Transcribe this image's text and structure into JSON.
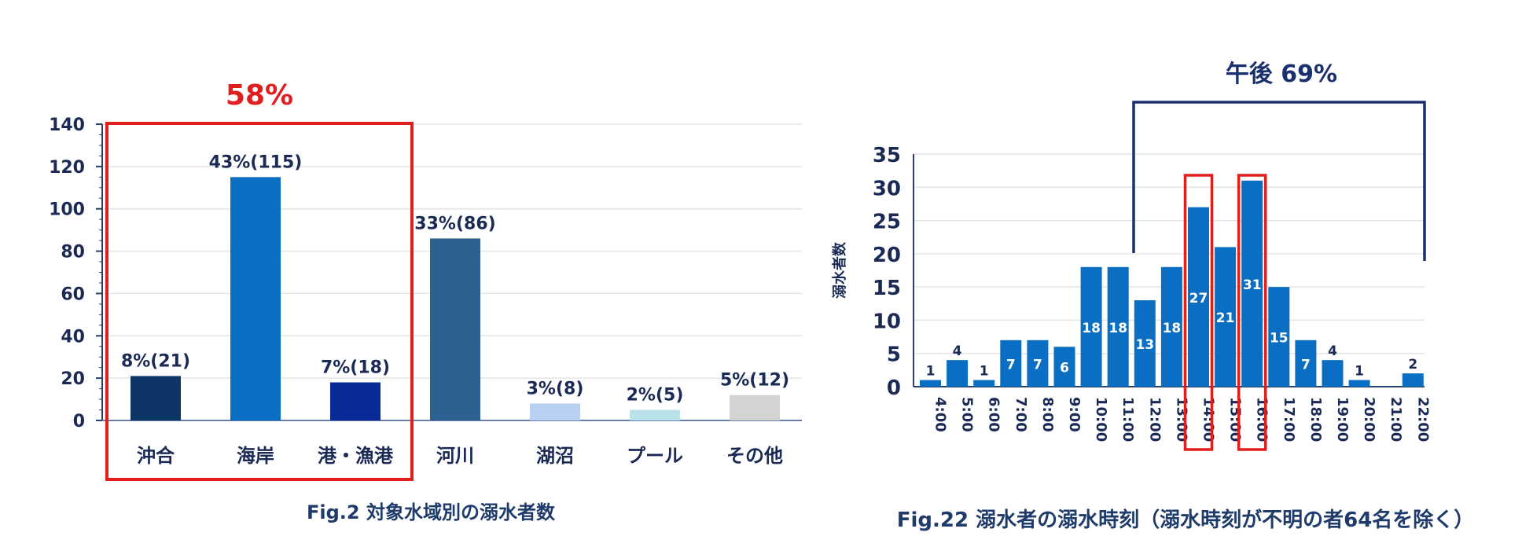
{
  "chart_data": [
    {
      "type": "bar",
      "title": "",
      "caption": "Fig.2 対象水域別の溺水者数",
      "categories": [
        "沖合",
        "海岸",
        "港・漁港",
        "河川",
        "湖沼",
        "プール",
        "その他"
      ],
      "values": [
        21,
        115,
        18,
        86,
        8,
        5,
        12
      ],
      "data_labels": [
        "8%(21)",
        "43%(115)",
        "7%(18)",
        "33%(86)",
        "3%(8)",
        "2%(5)",
        "5%(12)"
      ],
      "colors": [
        "#0d3566",
        "#0a6fc2",
        "#0a2a96",
        "#2c6190",
        "#b8d1f3",
        "#b9e3ea",
        "#d3d3d3"
      ],
      "ylim": [
        0,
        140
      ],
      "yticks": [
        0,
        20,
        40,
        60,
        80,
        100,
        120,
        140
      ],
      "grid": true,
      "xlabel": "",
      "ylabel": "",
      "highlight": {
        "label": "58%",
        "categories": [
          "沖合",
          "海岸",
          "港・漁港"
        ],
        "color": "#e01e1e"
      }
    },
    {
      "type": "bar",
      "title": "",
      "caption": "Fig.22 溺水者の溺水時刻（溺水時刻が不明の者64名を除く）",
      "categories": [
        "4:00",
        "5:00",
        "6:00",
        "7:00",
        "8:00",
        "9:00",
        "10:00",
        "11:00",
        "12:00",
        "13:00",
        "14:00",
        "15:00",
        "16:00",
        "17:00",
        "18:00",
        "19:00",
        "20:00",
        "21:00",
        "22:00"
      ],
      "values": [
        1,
        4,
        1,
        7,
        7,
        6,
        18,
        18,
        13,
        18,
        27,
        21,
        31,
        15,
        7,
        4,
        1,
        0,
        2
      ],
      "data_labels": [
        "1",
        "4",
        "1",
        "7",
        "7",
        "6",
        "18",
        "18",
        "13",
        "18",
        "27",
        "21",
        "31",
        "15",
        "7",
        "4",
        "1",
        "",
        "2"
      ],
      "bar_color": "#0a6fc2",
      "ylim": [
        0,
        35
      ],
      "yticks": [
        0,
        5,
        10,
        15,
        20,
        25,
        30,
        35
      ],
      "grid": true,
      "xlabel": "",
      "ylabel": "溺水者数",
      "bracket": {
        "label": "午後 69%",
        "from": "12:00",
        "to": "22:00",
        "color": "#1a2f6e"
      },
      "highlighted_categories": [
        "14:00",
        "16:00"
      ],
      "highlight_color": "#e01e1e"
    }
  ]
}
